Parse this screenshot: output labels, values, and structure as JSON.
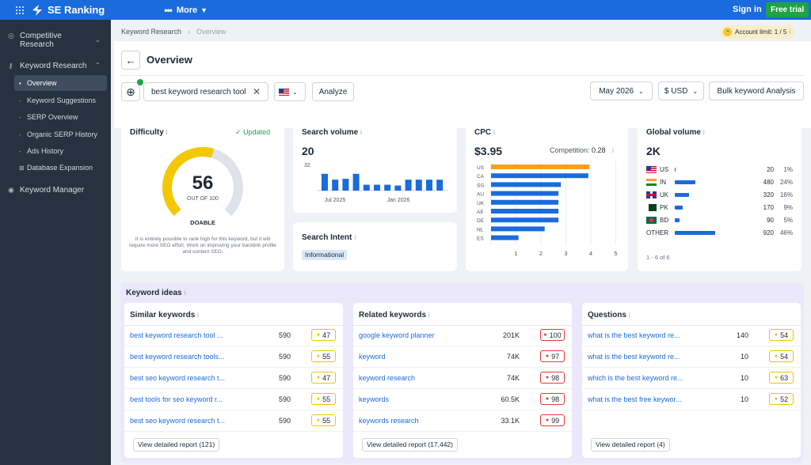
{
  "topbar": {
    "brand": "SE Ranking",
    "more_label": "More",
    "signin_label": "Sign in",
    "free_trial_label": "Free trial"
  },
  "sidebar": {
    "competitive": "Competitive Research",
    "keyword_research": "Keyword Research",
    "subitems": [
      "Overview",
      "Keyword Suggestions",
      "SERP Overview",
      "Organic SERP History",
      "Ads History",
      "Database Expansion"
    ],
    "keyword_manager": "Keyword Manager"
  },
  "breadcrumb": {
    "parent": "Keyword Research",
    "current": "Overview"
  },
  "account": {
    "label": "Account limit: 1 / 5"
  },
  "header": {
    "title": "Overview",
    "search_value": "best keyword research tool",
    "analyze_label": "Analyze",
    "date_label": "May 2026",
    "currency_label": "$ USD",
    "bulk_label": "Bulk keyword Analysis"
  },
  "difficulty": {
    "title": "Difficulty",
    "updated_label": "Updated",
    "value": "56",
    "score": 56,
    "max_label": "OUT OF 100",
    "verdict": "DOABLE",
    "note": "It is entirely possible to rank high for this keyword, but it will require more SEO effort. Work on improving your backlink profile and content SEO."
  },
  "search_volume": {
    "title": "Search volume",
    "value": "20",
    "ymax_label": "32",
    "x_labels": [
      "Jul 2025",
      "Jan 2026"
    ],
    "bars": [
      20,
      13,
      14,
      20,
      7,
      7,
      7,
      6,
      13,
      13,
      13,
      13
    ]
  },
  "search_intent": {
    "title": "Search Intent",
    "badge": "Informational"
  },
  "cpc": {
    "title": "CPC",
    "value": "$3.95",
    "competition_label": "Competition:",
    "competition_value": "0.28",
    "countries": [
      "US",
      "CA",
      "SG",
      "AU",
      "UK",
      "AE",
      "DE",
      "NL",
      "ES"
    ],
    "values": [
      3.95,
      3.9,
      2.8,
      2.7,
      2.7,
      2.7,
      2.7,
      2.15,
      1.1
    ],
    "ticks": [
      "1",
      "2",
      "3",
      "4",
      "5"
    ],
    "highlight_color": "#f7a01d",
    "bar_color": "#1a6bdc"
  },
  "global_volume": {
    "title": "Global volume",
    "value": "2K",
    "rows": [
      {
        "flag": "us",
        "code": "US",
        "volume": "20",
        "share": 1,
        "pct": "1%"
      },
      {
        "flag": "in",
        "code": "IN",
        "volume": "480",
        "share": 24,
        "pct": "24%"
      },
      {
        "flag": "uk",
        "code": "UK",
        "volume": "320",
        "share": 16,
        "pct": "16%"
      },
      {
        "flag": "pk",
        "code": "PK",
        "volume": "170",
        "share": 9,
        "pct": "9%"
      },
      {
        "flag": "bd",
        "code": "BD",
        "volume": "90",
        "share": 5,
        "pct": "5%"
      },
      {
        "flag": "",
        "code": "OTHER",
        "volume": "920",
        "share": 46,
        "pct": "46%"
      }
    ],
    "footer": "1 - 6 of 6"
  },
  "keyword_ideas": {
    "title": "Keyword ideas",
    "cards": [
      {
        "title": "Similar keywords",
        "rows": [
          {
            "kw": "best keyword research tool ...",
            "vol": "590",
            "kd": "47",
            "tone": "y"
          },
          {
            "kw": "best keyword research tools...",
            "vol": "590",
            "kd": "55",
            "tone": "y"
          },
          {
            "kw": "best seo keyword research t...",
            "vol": "590",
            "kd": "47",
            "tone": "y"
          },
          {
            "kw": "best tools for seo keyword r...",
            "vol": "590",
            "kd": "55",
            "tone": "y"
          },
          {
            "kw": "best seo keyword research t...",
            "vol": "590",
            "kd": "55",
            "tone": "y"
          }
        ],
        "report": "View detailed report (121)"
      },
      {
        "title": "Related keywords",
        "rows": [
          {
            "kw": "google keyword planner",
            "vol": "201K",
            "kd": "100",
            "tone": "r"
          },
          {
            "kw": "keyword",
            "vol": "74K",
            "kd": "97",
            "tone": "r"
          },
          {
            "kw": "keyword research",
            "vol": "74K",
            "kd": "98",
            "tone": "r"
          },
          {
            "kw": "keywords",
            "vol": "60.5K",
            "kd": "98",
            "tone": "r"
          },
          {
            "kw": "keywords research",
            "vol": "33.1K",
            "kd": "99",
            "tone": "r"
          }
        ],
        "report": "View detailed report (17,442)"
      },
      {
        "title": "Questions",
        "rows": [
          {
            "kw": "what is the best keyword re...",
            "vol": "140",
            "kd": "54",
            "tone": "y"
          },
          {
            "kw": "what is the best keyword re...",
            "vol": "10",
            "kd": "54",
            "tone": "y"
          },
          {
            "kw": "which is the best keyword re...",
            "vol": "10",
            "kd": "63",
            "tone": "y"
          },
          {
            "kw": "what is the best free keywor...",
            "vol": "10",
            "kd": "52",
            "tone": "y"
          }
        ],
        "report": "View detailed report (4)"
      }
    ]
  }
}
